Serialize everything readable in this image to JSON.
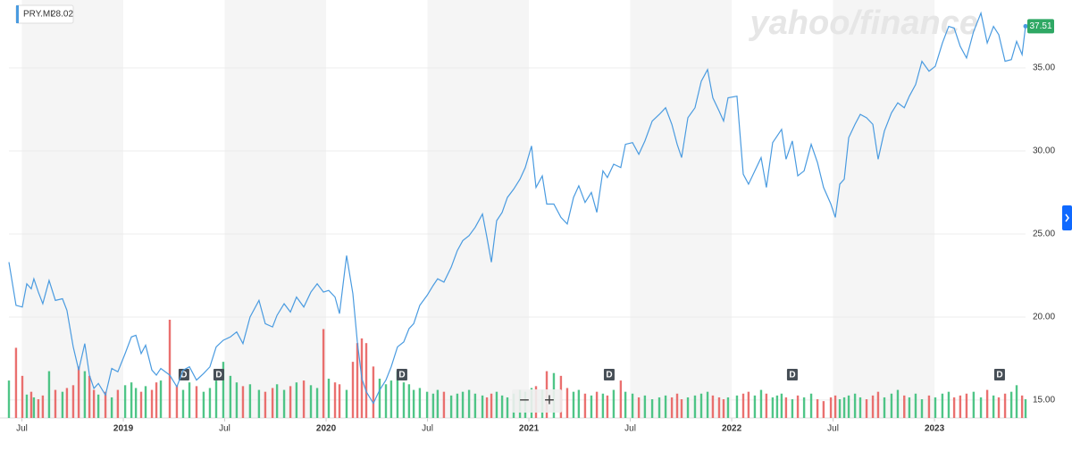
{
  "chart_data": {
    "type": "line",
    "legend_value": "28.02",
    "watermark": "yahoo/finance",
    "controls": {
      "zoom_out": "−",
      "zoom_in": "+"
    },
    "xlim": [
      2018.436,
      2023.449
    ],
    "xticks": [
      {
        "value": 2018.5,
        "label": "Jul"
      },
      {
        "value": 2019,
        "label": "2019"
      },
      {
        "value": 2019.5,
        "label": "Jul"
      },
      {
        "value": 2020,
        "label": "2020"
      },
      {
        "value": 2020.5,
        "label": "Jul"
      },
      {
        "value": 2021,
        "label": "2021"
      },
      {
        "value": 2021.5,
        "label": "Jul"
      },
      {
        "value": 2022,
        "label": "2022"
      },
      {
        "value": 2022.5,
        "label": "Jul"
      },
      {
        "value": 2023,
        "label": "2023"
      }
    ],
    "ylim": [
      13.92,
      39.09
    ],
    "yticks": [
      {
        "value": 15,
        "label": "15.00"
      },
      {
        "value": 20,
        "label": "20.00"
      },
      {
        "value": 25,
        "label": "25.00"
      },
      {
        "value": 30,
        "label": "30.00"
      },
      {
        "value": 35,
        "label": "35.00"
      }
    ],
    "grid": true,
    "x": [
      2018.436,
      2018.471,
      2018.502,
      2018.524,
      2018.546,
      2018.559,
      2018.581,
      2018.603,
      2018.634,
      2018.665,
      2018.7,
      2018.722,
      2018.753,
      2018.78,
      2018.81,
      2018.833,
      2018.855,
      2018.877,
      2018.912,
      2018.943,
      2018.973,
      2019.009,
      2019.04,
      2019.062,
      2019.088,
      2019.11,
      2019.141,
      2019.163,
      2019.185,
      2019.229,
      2019.264,
      2019.295,
      2019.326,
      2019.361,
      2019.396,
      2019.427,
      2019.458,
      2019.493,
      2019.528,
      2019.559,
      2019.59,
      2019.625,
      2019.669,
      2019.7,
      2019.736,
      2019.758,
      2019.793,
      2019.824,
      2019.854,
      2019.89,
      2019.925,
      2019.956,
      2019.987,
      2020.013,
      2020.044,
      2020.066,
      2020.101,
      2020.132,
      2020.154,
      2020.176,
      2020.198,
      2020.233,
      2020.264,
      2020.295,
      2020.321,
      2020.352,
      2020.383,
      2020.409,
      2020.432,
      2020.462,
      2020.498,
      2020.528,
      2020.55,
      2020.581,
      2020.617,
      2020.647,
      2020.674,
      2020.705,
      2020.735,
      2020.771,
      2020.793,
      2020.815,
      2020.841,
      2020.868,
      2020.894,
      2020.925,
      2020.956,
      2020.982,
      2021.013,
      2021.035,
      2021.066,
      2021.088,
      2021.123,
      2021.158,
      2021.189,
      2021.22,
      2021.246,
      2021.277,
      2021.308,
      2021.335,
      2021.365,
      2021.387,
      2021.418,
      2021.453,
      2021.476,
      2021.511,
      2021.542,
      2021.572,
      2021.608,
      2021.643,
      2021.674,
      2021.705,
      2021.731,
      2021.753,
      2021.784,
      2021.819,
      2021.85,
      2021.881,
      2021.907,
      2021.938,
      2021.96,
      2021.982,
      2022.026,
      2022.057,
      2022.083,
      2022.114,
      2022.145,
      2022.171,
      2022.202,
      2022.224,
      2022.246,
      2022.268,
      2022.299,
      2022.326,
      2022.357,
      2022.392,
      2022.423,
      2022.453,
      2022.489,
      2022.511,
      2022.533,
      2022.555,
      2022.577,
      2022.608,
      2022.634,
      2022.665,
      2022.696,
      2022.722,
      2022.753,
      2022.788,
      2022.819,
      2022.851,
      2022.876,
      2022.907,
      2022.938,
      2022.973,
      2023.004,
      2023.039,
      2023.07,
      2023.097,
      2023.127,
      2023.158,
      2023.193,
      2023.229,
      2023.26,
      2023.291,
      2023.317,
      2023.348,
      2023.379,
      2023.405,
      2023.432,
      2023.449
    ],
    "series": [
      {
        "name": "PRY.MI",
        "color": "#4a9be0",
        "values": [
          23.3,
          20.7,
          20.6,
          22.0,
          21.7,
          22.3,
          21.5,
          20.8,
          22.2,
          21.0,
          21.1,
          20.4,
          18.2,
          16.8,
          18.4,
          16.5,
          15.7,
          16.0,
          15.3,
          16.9,
          16.7,
          17.8,
          18.8,
          18.9,
          17.8,
          18.3,
          16.8,
          16.5,
          16.9,
          16.5,
          15.8,
          16.8,
          17.0,
          16.2,
          16.6,
          17.0,
          18.2,
          18.6,
          18.8,
          19.1,
          18.4,
          20.0,
          21.0,
          19.6,
          19.4,
          20.1,
          20.8,
          20.3,
          21.2,
          20.6,
          21.5,
          22.0,
          21.5,
          21.6,
          21.2,
          20.2,
          23.7,
          21.4,
          18.5,
          16.3,
          15.5,
          14.8,
          15.6,
          16.2,
          17.0,
          18.2,
          18.5,
          19.3,
          19.6,
          20.7,
          21.3,
          21.9,
          22.3,
          22.1,
          23.0,
          24.0,
          24.6,
          24.9,
          25.4,
          26.2,
          24.8,
          23.3,
          25.8,
          26.3,
          27.2,
          27.7,
          28.3,
          29.0,
          30.3,
          27.8,
          28.5,
          26.8,
          26.8,
          26.0,
          25.6,
          27.2,
          27.9,
          26.9,
          27.5,
          26.3,
          28.8,
          28.4,
          29.2,
          29.0,
          30.4,
          30.5,
          29.8,
          30.6,
          31.8,
          32.2,
          32.6,
          31.6,
          30.4,
          29.6,
          32.0,
          32.6,
          34.2,
          34.9,
          33.2,
          32.4,
          31.8,
          33.2,
          33.3,
          28.6,
          28.0,
          28.8,
          29.6,
          27.8,
          30.5,
          30.9,
          31.3,
          29.5,
          30.6,
          28.5,
          28.8,
          30.4,
          29.3,
          27.8,
          26.8,
          26.0,
          28.0,
          28.3,
          30.8,
          31.6,
          32.2,
          32.0,
          31.6,
          29.5,
          31.2,
          32.3,
          32.9,
          32.6,
          33.3,
          34.0,
          35.4,
          34.8,
          35.1,
          36.5,
          37.5,
          37.4,
          36.3,
          35.6,
          37.2,
          38.3,
          36.5,
          37.5,
          37.0,
          35.4,
          35.5,
          36.6,
          35.8,
          37.51
        ]
      }
    ],
    "volume": {
      "up_color": "#3cbf7a",
      "down_color": "#e8605f",
      "values": [
        40,
        75,
        45,
        25,
        28,
        22,
        20,
        24,
        50,
        30,
        28,
        32,
        35,
        55,
        50,
        45,
        30,
        25,
        28,
        22,
        30,
        35,
        38,
        32,
        28,
        34,
        30,
        38,
        40,
        105,
        35,
        30,
        38,
        34,
        28,
        32,
        40,
        60,
        45,
        38,
        34,
        36,
        30,
        28,
        32,
        36,
        30,
        34,
        38,
        40,
        35,
        32,
        95,
        42,
        38,
        36,
        30,
        60,
        80,
        85,
        80,
        55,
        42,
        36,
        40,
        50,
        38,
        36,
        30,
        32,
        28,
        26,
        30,
        28,
        24,
        26,
        28,
        30,
        26,
        24,
        22,
        26,
        28,
        24,
        22,
        26,
        30,
        28,
        32,
        34,
        30,
        50,
        48,
        45,
        32,
        28,
        30,
        26,
        24,
        28,
        26,
        24,
        30,
        40,
        28,
        26,
        22,
        24,
        20,
        22,
        24,
        22,
        26,
        20,
        22,
        24,
        26,
        28,
        24,
        22,
        20,
        22,
        24,
        26,
        28,
        24,
        30,
        26,
        22,
        24,
        26,
        22,
        20,
        24,
        22,
        26,
        20,
        18,
        22,
        24,
        20,
        22,
        24,
        26,
        22,
        20,
        24,
        28,
        22,
        26,
        30,
        24,
        22,
        26,
        20,
        24,
        22,
        26,
        28,
        22,
        24,
        26,
        28,
        22,
        30,
        24,
        22,
        26,
        28,
        35,
        24,
        20
      ]
    },
    "dividend_markers": [
      {
        "x": 2019.299,
        "label": "D"
      },
      {
        "x": 2019.471,
        "label": "D"
      },
      {
        "x": 2020.374,
        "label": "D"
      },
      {
        "x": 2021.396,
        "label": "D"
      },
      {
        "x": 2022.299,
        "label": "D"
      },
      {
        "x": 2023.321,
        "label": "D"
      }
    ]
  }
}
